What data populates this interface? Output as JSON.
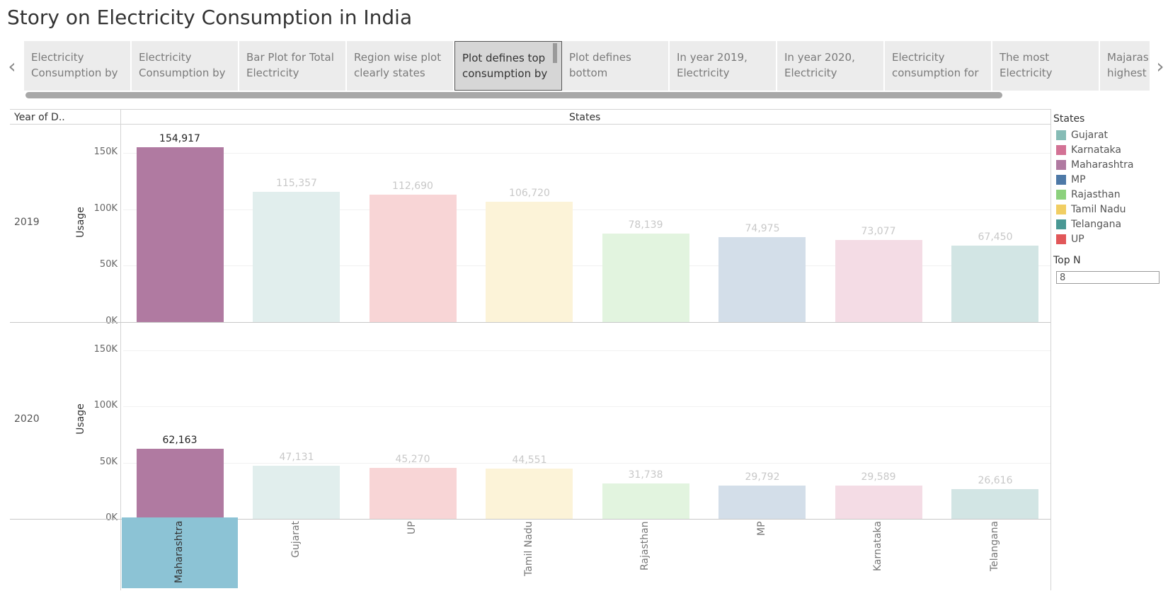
{
  "story_title": "Story on Electricity Consumption in India",
  "nav": {
    "prev": "‹",
    "next": "›"
  },
  "tabs": [
    {
      "label": "Electricity Consumption by",
      "active": false
    },
    {
      "label": "Electricity Consumption by",
      "active": false
    },
    {
      "label": "Bar Plot for Total Electricity",
      "active": false
    },
    {
      "label": "Region wise plot clearly states",
      "active": false
    },
    {
      "label": "Plot defines top consumption by",
      "active": true
    },
    {
      "label": "Plot defines bottom",
      "active": false
    },
    {
      "label": "In year 2019, Electricity",
      "active": false
    },
    {
      "label": "In year 2020, Electricity",
      "active": false
    },
    {
      "label": "Electricity consumption for",
      "active": false
    },
    {
      "label": "The most Electricity",
      "active": false
    },
    {
      "label": "Majarashtra has highest",
      "active": false
    }
  ],
  "chart_headers": {
    "row_header": "Year of D..",
    "column_header": "States"
  },
  "legend": {
    "title": "States",
    "items": [
      {
        "label": "Gujarat",
        "color": "#86bcb6"
      },
      {
        "label": "Karnataka",
        "color": "#d37295"
      },
      {
        "label": "Maharashtra",
        "color": "#b07aa1"
      },
      {
        "label": "MP",
        "color": "#4e79a7"
      },
      {
        "label": "Rajasthan",
        "color": "#8cd17d"
      },
      {
        "label": "Tamil Nadu",
        "color": "#f1ce63"
      },
      {
        "label": "Telangana",
        "color": "#499894"
      },
      {
        "label": "UP",
        "color": "#e15759"
      }
    ]
  },
  "top_n": {
    "label": "Top N",
    "value": "8"
  },
  "chart_data": {
    "type": "bar",
    "xlabel": "States",
    "ylabel": "Usage",
    "categories": [
      "Maharashtra",
      "Gujarat",
      "UP",
      "Tamil Nadu",
      "Rajasthan",
      "MP",
      "Karnataka",
      "Telangana"
    ],
    "selected_category": "Maharashtra",
    "ylim": [
      0,
      170000
    ],
    "yticks": [
      "0K",
      "50K",
      "100K",
      "150K"
    ],
    "ytick_values": [
      0,
      50000,
      100000,
      150000
    ],
    "grid": true,
    "legend_position": "right",
    "panels": [
      {
        "year": "2019",
        "values": [
          154917,
          115357,
          112690,
          106720,
          78139,
          74975,
          73077,
          67450
        ],
        "labels": [
          "154,917",
          "115,357",
          "112,690",
          "106,720",
          "78,139",
          "74,975",
          "73,077",
          "67,450"
        ]
      },
      {
        "year": "2020",
        "values": [
          62163,
          47131,
          45270,
          44551,
          31738,
          29792,
          29589,
          26616
        ],
        "labels": [
          "62,163",
          "47,131",
          "45,270",
          "44,551",
          "31,738",
          "29,792",
          "29,589",
          "26,616"
        ]
      }
    ]
  }
}
